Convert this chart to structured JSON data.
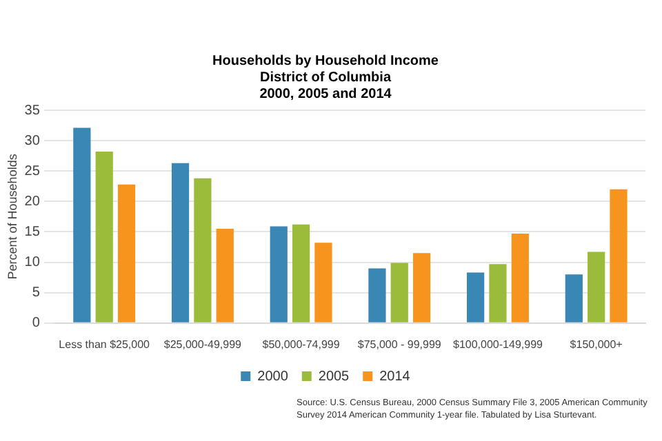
{
  "chart_data": {
    "type": "bar",
    "title": "Households by Household Income",
    "subtitle": "District of Columbia\n2000, 2005 and 2014",
    "ylabel": "Percent of Households",
    "categories": [
      "Less than $25,000",
      "$25,000-49,999",
      "$50,000-74,999",
      "$75,000 - 99,999",
      "$100,000-149,999",
      "$150,000+"
    ],
    "series": [
      {
        "name": "2000",
        "color": "#3a86b4",
        "values": [
          32.1,
          26.3,
          15.9,
          9.0,
          8.3,
          8.0
        ]
      },
      {
        "name": "2005",
        "color": "#9bbb3b",
        "values": [
          28.2,
          23.8,
          16.2,
          9.9,
          9.7,
          11.7
        ]
      },
      {
        "name": "2014",
        "color": "#f7941d",
        "values": [
          22.8,
          15.5,
          13.2,
          11.5,
          14.7,
          22.0
        ]
      }
    ],
    "ylim": [
      0,
      35
    ],
    "yticks": [
      0,
      5,
      10,
      15,
      20,
      25,
      30,
      35
    ],
    "grid": "y",
    "legend": "bottom",
    "annotations": [
      "Source: U.S. Census Bureau, 2000 Census Summary File 3, 2005 American Community Survey 2014 American Community 1-year file. Tabulated by Lisa Sturtevant."
    ]
  }
}
